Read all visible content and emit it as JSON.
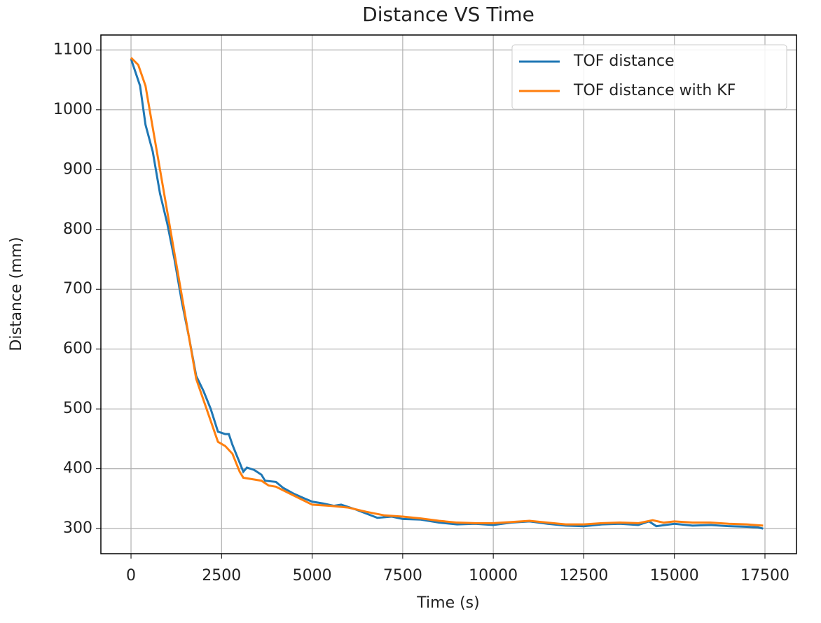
{
  "chart_data": {
    "type": "line",
    "title": "Distance VS Time",
    "xlabel": "Time (s)",
    "ylabel": "Distance (mm)",
    "xlim": [
      -832,
      18370
    ],
    "ylim": [
      258,
      1125
    ],
    "xticks": [
      0,
      2500,
      5000,
      7500,
      10000,
      12500,
      15000,
      17500
    ],
    "yticks": [
      300,
      400,
      500,
      600,
      700,
      800,
      900,
      1000,
      1100
    ],
    "grid": true,
    "legend": "upper right",
    "series": [
      {
        "name": "TOF distance",
        "color": "#1f77b4",
        "x": [
          0,
          250,
          400,
          600,
          800,
          1000,
          1200,
          1400,
          1600,
          1800,
          2000,
          2200,
          2400,
          2600,
          2700,
          2800,
          3000,
          3100,
          3200,
          3400,
          3600,
          3700,
          4000,
          4200,
          4500,
          4800,
          5000,
          5300,
          5600,
          5800,
          6200,
          6500,
          6800,
          7200,
          7500,
          8000,
          8500,
          9000,
          9500,
          10000,
          10500,
          11000,
          11500,
          12000,
          12500,
          13000,
          13500,
          14000,
          14300,
          14500,
          15000,
          15500,
          16000,
          16500,
          17000,
          17300,
          17450
        ],
        "values": [
          1085,
          1040,
          975,
          930,
          860,
          810,
          750,
          680,
          620,
          555,
          530,
          500,
          462,
          458,
          458,
          440,
          410,
          395,
          402,
          398,
          390,
          380,
          378,
          368,
          358,
          350,
          345,
          342,
          338,
          340,
          332,
          325,
          318,
          320,
          316,
          315,
          310,
          307,
          308,
          306,
          310,
          312,
          308,
          305,
          304,
          307,
          308,
          306,
          312,
          304,
          308,
          305,
          306,
          304,
          303,
          302,
          300
        ]
      },
      {
        "name": "TOF distance with KF",
        "color": "#ff7f0e",
        "x": [
          0,
          200,
          400,
          600,
          800,
          1000,
          1200,
          1400,
          1600,
          1800,
          2000,
          2200,
          2400,
          2600,
          2800,
          3000,
          3100,
          3400,
          3600,
          3800,
          4000,
          4500,
          5000,
          5500,
          6000,
          6500,
          7000,
          7500,
          8000,
          8500,
          9000,
          9500,
          10000,
          10500,
          11000,
          11500,
          12000,
          12500,
          13000,
          13500,
          14000,
          14400,
          14700,
          15000,
          15500,
          16000,
          16500,
          17000,
          17450
        ],
        "values": [
          1087,
          1075,
          1040,
          970,
          900,
          830,
          760,
          690,
          620,
          550,
          515,
          480,
          445,
          438,
          425,
          395,
          385,
          382,
          380,
          372,
          370,
          355,
          340,
          338,
          335,
          328,
          322,
          320,
          317,
          313,
          310,
          309,
          309,
          311,
          313,
          310,
          307,
          307,
          309,
          310,
          309,
          314,
          310,
          312,
          310,
          310,
          308,
          307,
          305
        ]
      }
    ]
  }
}
